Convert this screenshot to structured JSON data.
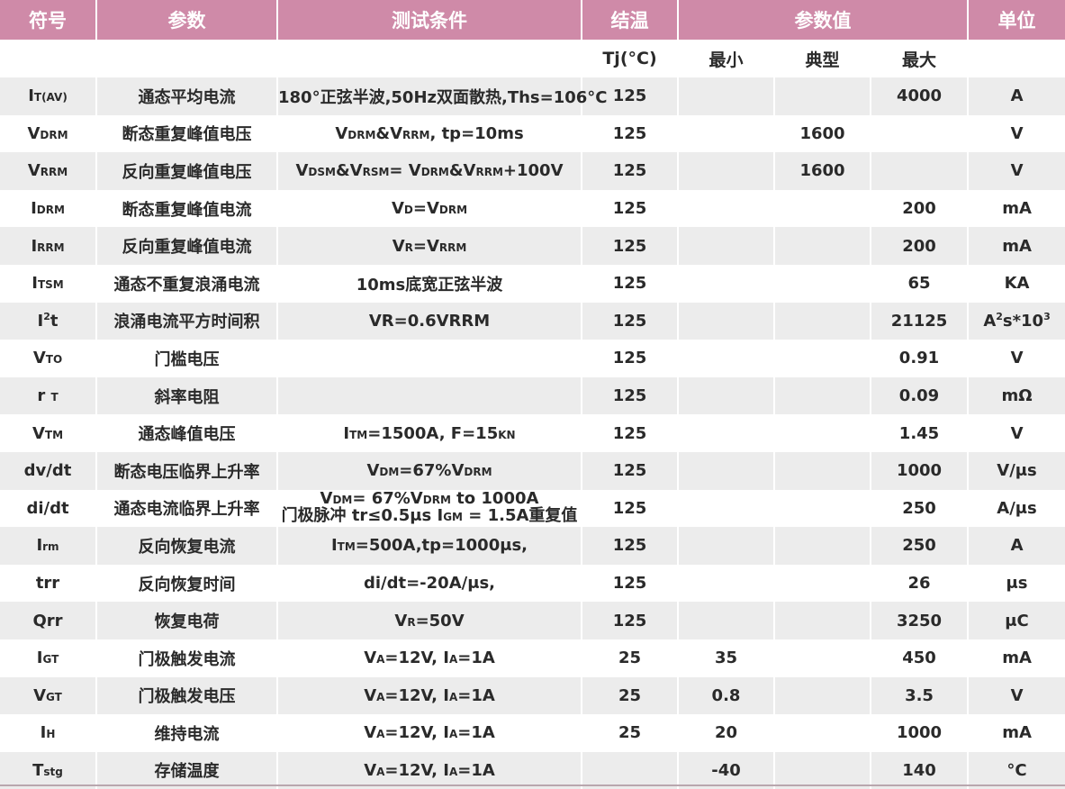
{
  "header": {
    "symbol": "符号",
    "parameter": "参数",
    "condition": "测试条件",
    "junction_temp": "结温",
    "values": "参数值",
    "unit": "单位"
  },
  "subheader": {
    "tj": "Tj(°C)",
    "min": "最小",
    "typ": "典型",
    "max": "最大"
  },
  "rows": [
    {
      "sym_main": "I",
      "sym_sub": "T(AV)",
      "param": "通态平均电流",
      "cond": "180°正弦半波,50Hz双面散热,Ths=106°C",
      "tj": "125",
      "min": "",
      "typ": "",
      "max": "4000",
      "unit": "A"
    },
    {
      "sym_main": "V",
      "sym_sub": "DRM",
      "param": "断态重复峰值电压",
      "c1": "V",
      "c1s": "DRM",
      "c2": "&V",
      "c2s": "RRM",
      "c3": ", tp=10ms",
      "tj": "125",
      "min": "",
      "typ": "1600",
      "max": "",
      "unit": "V"
    },
    {
      "sym_main": "V",
      "sym_sub": "RRM",
      "param": "反向重复峰值电压",
      "c1": "V",
      "c1s": "DSM",
      "c2": "&V",
      "c2s": "RSM",
      "c3": "= V",
      "c3s": "DRM",
      "c4": "&V",
      "c4s": "RRM",
      "c5": "+100V",
      "tj": "125",
      "min": "",
      "typ": "1600",
      "max": "",
      "unit": "V"
    },
    {
      "sym_main": "I",
      "sym_sub": "DRM",
      "param": "断态重复峰值电流",
      "c1": "V",
      "c1s": "D",
      "c2": "=V",
      "c2s": "DRM",
      "tj": "125",
      "min": "",
      "typ": "",
      "max": "200",
      "unit": "mA"
    },
    {
      "sym_main": "I",
      "sym_sub": "RRM",
      "param": "反向重复峰值电流",
      "c1": "V",
      "c1s": "R",
      "c2": "=V",
      "c2s": "RRM",
      "tj": "125",
      "min": "",
      "typ": "",
      "max": "200",
      "unit": "mA"
    },
    {
      "sym_main": "I",
      "sym_sub": "TSM",
      "param": "通态不重复浪涌电流",
      "cond": "10ms底宽正弦半波",
      "tj": "125",
      "min": "",
      "typ": "",
      "max": "65",
      "unit": "KA"
    },
    {
      "sym_main": "I",
      "sym_sup": "2",
      "sym_tail": "t",
      "param": "浪涌电流平方时间积",
      "cond": "VR=0.6VRRM",
      "tj": "125",
      "min": "",
      "typ": "",
      "max": "21125",
      "unit_main": "A",
      "unit_sup": "2",
      "unit_mid": "s*10",
      "unit_sup2": "3"
    },
    {
      "sym_main": "V",
      "sym_sub": "TO",
      "param": "门槛电压",
      "cond": "",
      "tj": "125",
      "min": "",
      "typ": "",
      "max": "0.91",
      "unit": "V"
    },
    {
      "sym_main": "r",
      "sym_sub": "T",
      "param": "斜率电阻",
      "cond": "",
      "tj": "125",
      "min": "",
      "typ": "",
      "max": "0.09",
      "unit": "mΩ"
    },
    {
      "sym_main": "V",
      "sym_sub": "TM",
      "param": "通态峰值电压",
      "c1": "I",
      "c1s": "TM",
      "c2": "=1500A, F=15",
      "c2s": "KN",
      "tj": "125",
      "min": "",
      "typ": "",
      "max": "1.45",
      "unit": "V"
    },
    {
      "sym_main": "dv/dt",
      "param": "断态电压临界上升率",
      "c1": "V",
      "c1s": "DM",
      "c2": "=67%V",
      "c2s": "DRM",
      "tj": "125",
      "min": "",
      "typ": "",
      "max": "1000",
      "unit": "V/μs"
    },
    {
      "sym_main": "di/dt",
      "param": "通态电流临界上升率",
      "l1a": "V",
      "l1as": "DM",
      "l1b": "= 67%V",
      "l1bs": "DRM",
      "l1c": " to 1000A",
      "l2a": "门极脉冲 tr≤0.5μs I",
      "l2as": "GM",
      "l2b": " = 1.5A重复值",
      "tj": "125",
      "min": "",
      "typ": "",
      "max": "250",
      "unit": "A/μs"
    },
    {
      "sym_main": "I",
      "sym_sub": "rm",
      "param": "反向恢复电流",
      "c1": "I",
      "c1s": "TM",
      "c2": "=500A,tp=1000μs,",
      "tj": "125",
      "min": "",
      "typ": "",
      "max": "250",
      "unit": "A"
    },
    {
      "sym_main": "trr",
      "param": "反向恢复时间",
      "cond": "di/dt=-20A/μs,",
      "tj": "125",
      "min": "",
      "typ": "",
      "max": "26",
      "unit": "μs"
    },
    {
      "sym_main": "Qrr",
      "param": "恢复电荷",
      "c1": "V",
      "c1s": "R",
      "c2": "=50V",
      "tj": "125",
      "min": "",
      "typ": "",
      "max": "3250",
      "unit": "μC"
    },
    {
      "sym_main": "I",
      "sym_sub": "GT",
      "param": "门极触发电流",
      "c1": "V",
      "c1s": "A",
      "c2": "=12V, I",
      "c2s": "A",
      "c3": "=1A",
      "tj": "25",
      "min": "35",
      "typ": "",
      "max": "450",
      "unit": "mA"
    },
    {
      "sym_main": "V",
      "sym_sub": "GT",
      "param": "门极触发电压",
      "c1": "V",
      "c1s": "A",
      "c2": "=12V, I",
      "c2s": "A",
      "c3": "=1A",
      "tj": "25",
      "min": "0.8",
      "typ": "",
      "max": "3.5",
      "unit": "V"
    },
    {
      "sym_main": "I",
      "sym_sub": "H",
      "param": "维持电流",
      "c1": "V",
      "c1s": "A",
      "c2": "=12V, I",
      "c2s": "A",
      "c3": "=1A",
      "tj": "25",
      "min": "20",
      "typ": "",
      "max": "1000",
      "unit": "mA"
    },
    {
      "sym_main": "T",
      "sym_sub": "stg",
      "param": "存储温度",
      "c1": "V",
      "c1s": "A",
      "c2": "=12V, I",
      "c2s": "A",
      "c3": "=1A",
      "tj": "",
      "min": "-40",
      "typ": "",
      "max": "140",
      "unit": "°C"
    }
  ]
}
